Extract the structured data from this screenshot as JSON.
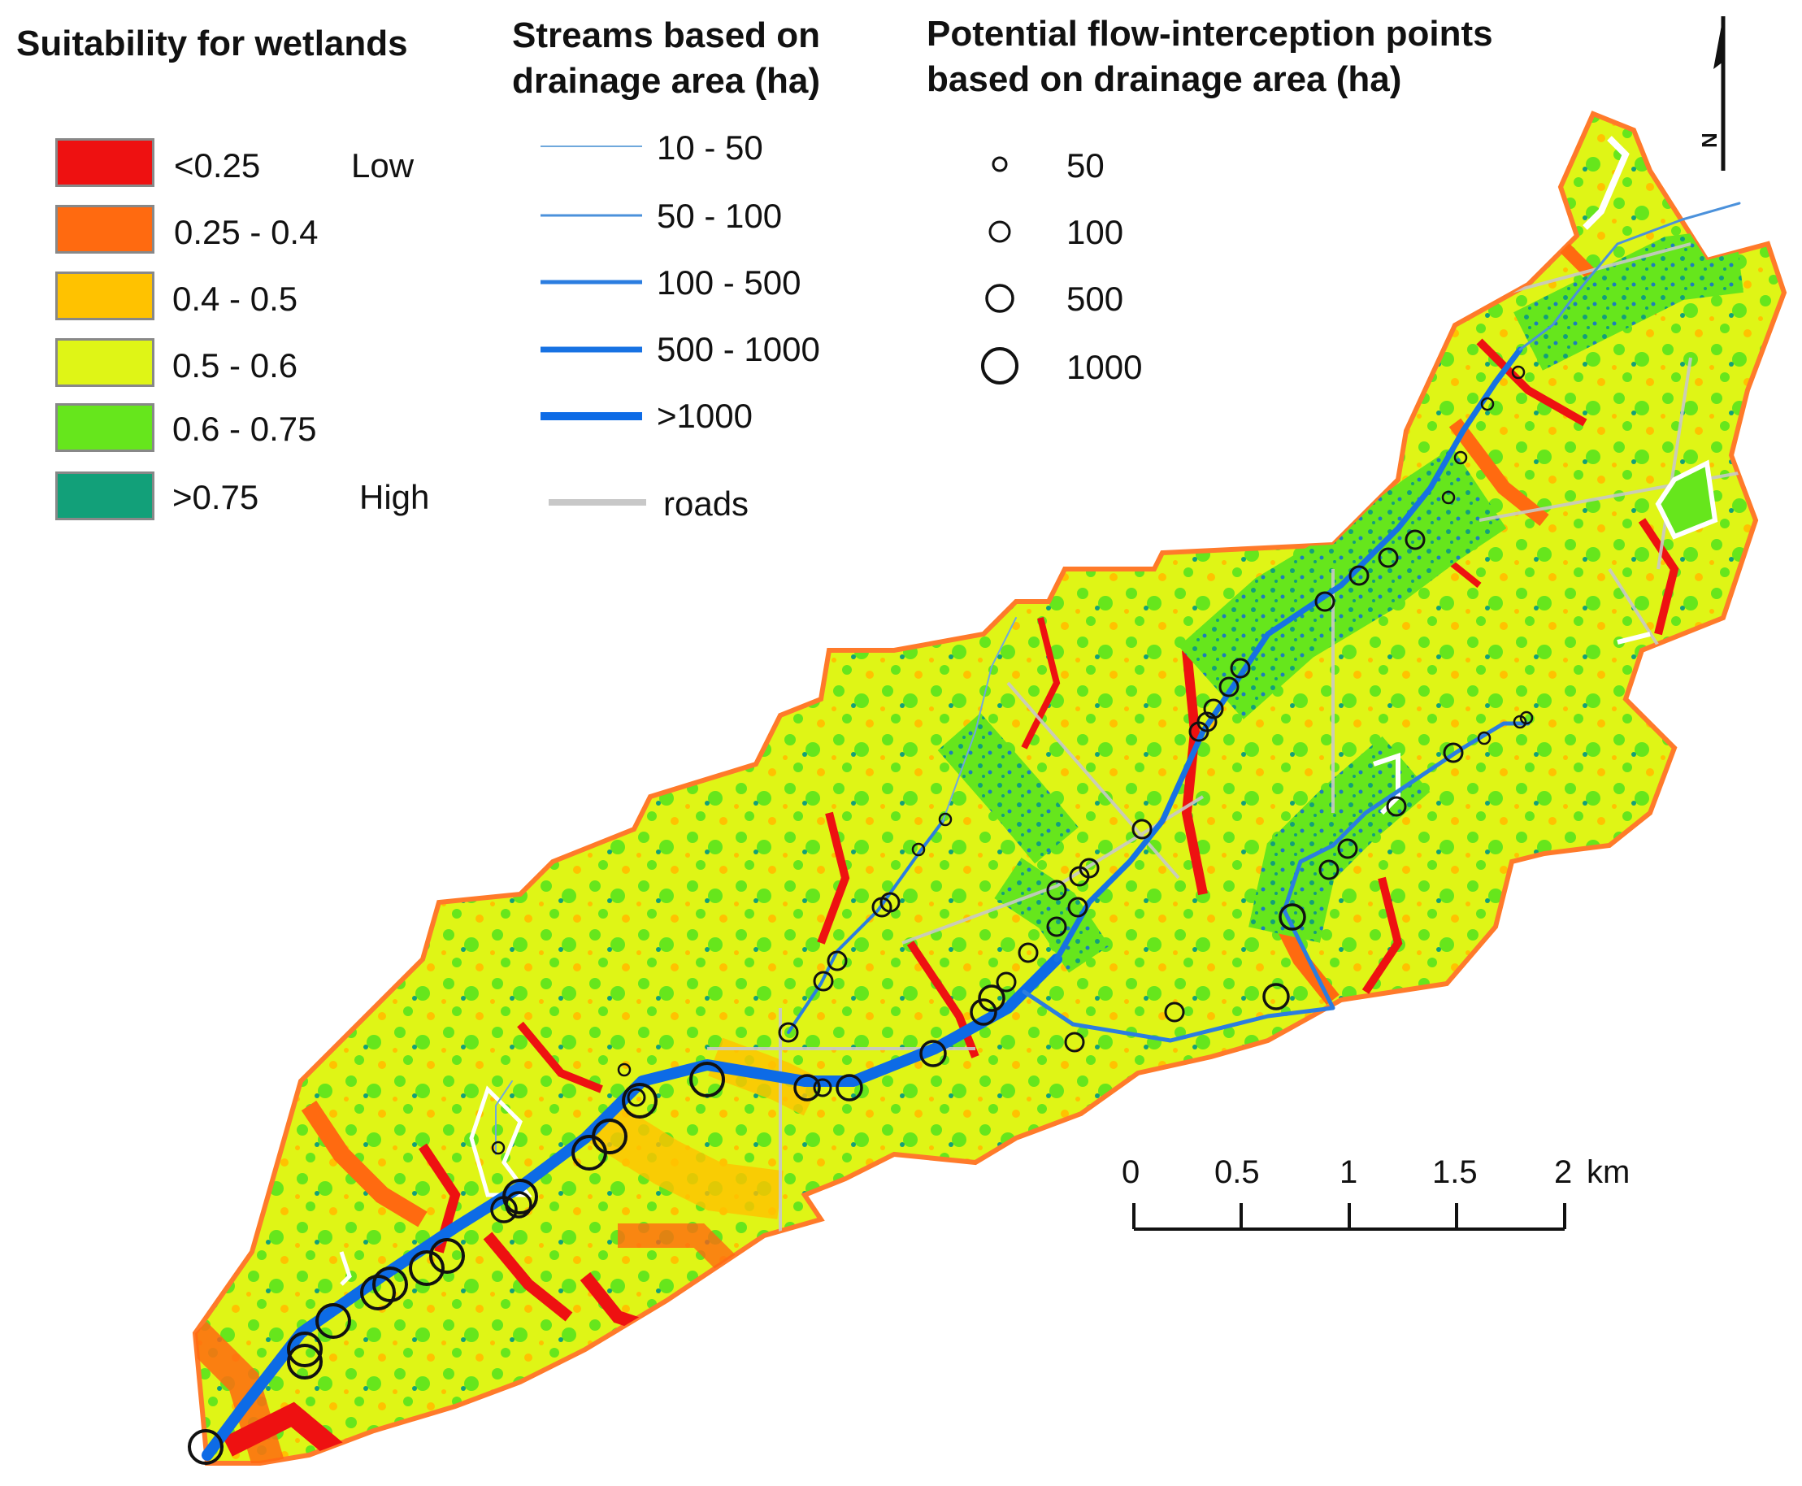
{
  "suitability_legend": {
    "title": "Suitability for wetlands",
    "classes": [
      {
        "range": "<0.25",
        "note": "Low",
        "color": "#ee1111"
      },
      {
        "range": "0.25 - 0.4",
        "note": "",
        "color": "#ff6a10"
      },
      {
        "range": "0.4 - 0.5",
        "note": "",
        "color": "#ffc200"
      },
      {
        "range": "0.5 - 0.6",
        "note": "",
        "color": "#dff516"
      },
      {
        "range": "0.6 - 0.75",
        "note": "",
        "color": "#66e61c"
      },
      {
        "range": ">0.75",
        "note": "High",
        "color": "#12a079"
      }
    ]
  },
  "streams_legend": {
    "title_line1": "Streams based on",
    "title_line2": "drainage area (ha)",
    "classes": [
      {
        "range": "10 - 50",
        "color": "#6fa8dc"
      },
      {
        "range": "50 - 100",
        "color": "#4b91db"
      },
      {
        "range": "100 - 500",
        "color": "#2b7de0"
      },
      {
        "range": "500 - 1000",
        "color": "#1772e3"
      },
      {
        "range": ">1000",
        "color": "#0d6be6"
      }
    ],
    "roads_label": "roads",
    "roads_color": "#c8c8c8"
  },
  "points_legend": {
    "title_line1": "Potential flow-interception points",
    "title_line2": "based on drainage area (ha)",
    "classes": [
      {
        "label": "50"
      },
      {
        "label": "100"
      },
      {
        "label": "500"
      },
      {
        "label": "1000"
      }
    ]
  },
  "north_arrow": {
    "label": "N"
  },
  "scale_bar": {
    "ticks": [
      "0",
      "0.5",
      "1",
      "1.5",
      "2"
    ],
    "unit": "km"
  }
}
